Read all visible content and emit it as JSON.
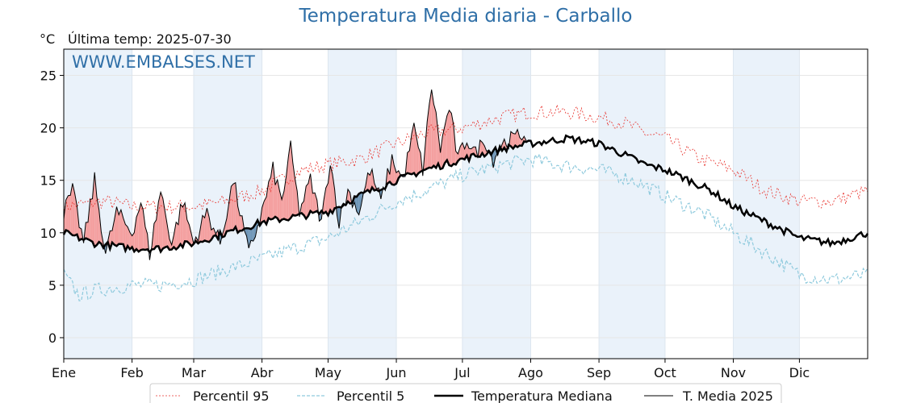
{
  "header": {
    "title": "Temperatura Media diaria - Carballo",
    "unit": "°C",
    "last_temp": "Última temp: 2025-07-30",
    "watermark": "WWW.EMBALSES.NET"
  },
  "colors": {
    "p95": "#e8322c",
    "p5": "#8fcadd",
    "median": "#000000",
    "current": "#000000",
    "above_fill": "#f4a0a0",
    "below_fill": "#7097b8",
    "band": "#eaf2fa"
  },
  "chart_data": {
    "type": "line",
    "title": "Temperatura Media diaria - Carballo",
    "ylabel": "°C",
    "xlabel": "",
    "xlim": [
      1,
      366
    ],
    "ylim": [
      -2,
      27.5
    ],
    "yticks": [
      0,
      5,
      10,
      15,
      20,
      25
    ],
    "grid": true,
    "legend_position": "bottom",
    "months": [
      "Ene",
      "Feb",
      "Mar",
      "Abr",
      "May",
      "Jun",
      "Jul",
      "Ago",
      "Sep",
      "Oct",
      "Nov",
      "Dic"
    ],
    "month_start_days": [
      1,
      32,
      60,
      91,
      121,
      152,
      182,
      213,
      244,
      274,
      305,
      335
    ],
    "last_day": 211,
    "series_keyframes": {
      "p95": [
        [
          1,
          12.5
        ],
        [
          20,
          13
        ],
        [
          32,
          12.5
        ],
        [
          45,
          12.5
        ],
        [
          60,
          12.5
        ],
        [
          75,
          13
        ],
        [
          91,
          14
        ],
        [
          100,
          15
        ],
        [
          110,
          16
        ],
        [
          121,
          16.5
        ],
        [
          135,
          17
        ],
        [
          152,
          18.5
        ],
        [
          165,
          19.5
        ],
        [
          182,
          20
        ],
        [
          200,
          21
        ],
        [
          213,
          21.5
        ],
        [
          230,
          21.5
        ],
        [
          244,
          21
        ],
        [
          255,
          20.5
        ],
        [
          265,
          19.5
        ],
        [
          274,
          19
        ],
        [
          290,
          17
        ],
        [
          305,
          16
        ],
        [
          320,
          14
        ],
        [
          335,
          13
        ],
        [
          350,
          13
        ],
        [
          366,
          14
        ]
      ],
      "p5": [
        [
          1,
          6
        ],
        [
          8,
          4
        ],
        [
          15,
          4.5
        ],
        [
          32,
          5
        ],
        [
          45,
          5
        ],
        [
          60,
          5.5
        ],
        [
          75,
          6.5
        ],
        [
          91,
          7.5
        ],
        [
          105,
          8.5
        ],
        [
          121,
          9.5
        ],
        [
          135,
          11
        ],
        [
          152,
          13
        ],
        [
          165,
          14
        ],
        [
          182,
          15.5
        ],
        [
          200,
          16.5
        ],
        [
          213,
          17
        ],
        [
          225,
          16.5
        ],
        [
          244,
          16
        ],
        [
          260,
          15
        ],
        [
          274,
          13.5
        ],
        [
          290,
          12
        ],
        [
          305,
          10
        ],
        [
          320,
          8
        ],
        [
          335,
          6
        ],
        [
          350,
          5.5
        ],
        [
          366,
          6
        ]
      ],
      "median": [
        [
          1,
          10
        ],
        [
          15,
          9
        ],
        [
          32,
          8.5
        ],
        [
          45,
          8.5
        ],
        [
          60,
          9
        ],
        [
          75,
          10
        ],
        [
          91,
          11
        ],
        [
          105,
          11.5
        ],
        [
          121,
          12
        ],
        [
          135,
          13.5
        ],
        [
          152,
          15
        ],
        [
          165,
          16
        ],
        [
          182,
          17
        ],
        [
          200,
          18
        ],
        [
          213,
          18.5
        ],
        [
          230,
          19
        ],
        [
          244,
          18.5
        ],
        [
          255,
          17.5
        ],
        [
          265,
          16.5
        ],
        [
          274,
          16
        ],
        [
          285,
          15
        ],
        [
          295,
          14
        ],
        [
          305,
          12.5
        ],
        [
          320,
          11
        ],
        [
          335,
          9.5
        ],
        [
          350,
          9
        ],
        [
          366,
          10
        ]
      ],
      "current": [
        [
          1,
          12
        ],
        [
          5,
          14
        ],
        [
          10,
          9
        ],
        [
          15,
          15
        ],
        [
          20,
          8
        ],
        [
          25,
          12
        ],
        [
          32,
          10
        ],
        [
          36,
          13
        ],
        [
          40,
          8
        ],
        [
          45,
          14
        ],
        [
          50,
          9
        ],
        [
          55,
          13
        ],
        [
          60,
          9
        ],
        [
          66,
          12
        ],
        [
          72,
          9
        ],
        [
          78,
          15
        ],
        [
          85,
          8
        ],
        [
          91,
          12
        ],
        [
          96,
          16
        ],
        [
          100,
          13
        ],
        [
          104,
          18
        ],
        [
          108,
          12
        ],
        [
          113,
          15
        ],
        [
          118,
          11
        ],
        [
          122,
          17
        ],
        [
          126,
          11
        ],
        [
          130,
          14
        ],
        [
          135,
          12
        ],
        [
          140,
          16
        ],
        [
          145,
          13
        ],
        [
          150,
          17
        ],
        [
          155,
          15
        ],
        [
          160,
          20
        ],
        [
          164,
          16
        ],
        [
          168,
          24
        ],
        [
          172,
          18
        ],
        [
          176,
          22
        ],
        [
          180,
          17
        ],
        [
          184,
          19
        ],
        [
          188,
          17.5
        ],
        [
          192,
          19
        ],
        [
          196,
          17
        ],
        [
          200,
          18.5
        ],
        [
          205,
          19
        ],
        [
          211,
          19.5
        ]
      ]
    },
    "legend": [
      "Percentil 95",
      "Percentil 5",
      "Temperatura Mediana",
      "T. Media 2025"
    ]
  }
}
